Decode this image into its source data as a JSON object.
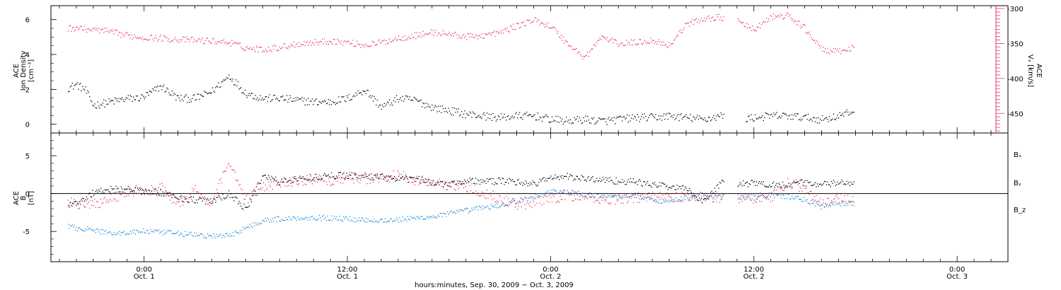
{
  "colors": {
    "black": "#000000",
    "red": "#e8365f",
    "blue": "#1f86d6"
  },
  "chart_data": [
    {
      "type": "scatter",
      "panel": "top",
      "ylabel_left": [
        "ACE",
        "Ion Density",
        "[cm⁻³]"
      ],
      "ylabel_right": [
        "ACE",
        "Vₓ [km/s]"
      ],
      "ylim_left": [
        -0.5,
        6.8
      ],
      "ylim_right": [
        -478,
        -296
      ],
      "yticks_left": [
        "0",
        "2",
        "4",
        "6"
      ],
      "yticks_right": [
        "-300",
        "-350",
        "-400",
        "-450"
      ],
      "series": [
        {
          "color": "#000000",
          "axis": "left",
          "x": [
            -4.5,
            -4,
            -3.5,
            -3,
            -2.5,
            -2,
            -1.5,
            -1,
            -0.5,
            0,
            1,
            2,
            3,
            4,
            5,
            6,
            7,
            8,
            9,
            10,
            11,
            12,
            13,
            14,
            15,
            16,
            17,
            18,
            19,
            20,
            21,
            22,
            23,
            24,
            25,
            26,
            27,
            28,
            29,
            30,
            31,
            32,
            33,
            34,
            35,
            36,
            37,
            38,
            39,
            40,
            41,
            42
          ],
          "y": [
            2.1,
            2.3,
            2.0,
            1.1,
            1.2,
            1.3,
            1.4,
            1.5,
            1.5,
            1.6,
            2.2,
            1.5,
            1.5,
            1.9,
            2.8,
            1.8,
            1.5,
            1.5,
            1.4,
            1.3,
            1.3,
            1.5,
            2.0,
            1.0,
            1.5,
            1.4,
            1.0,
            0.8,
            0.6,
            0.5,
            0.4,
            0.5,
            0.5,
            0.3,
            0.2,
            0.3,
            0.2,
            0.3,
            0.4,
            0.4,
            0.5,
            0.4,
            0.3,
            0.5,
            0.3,
            0.4,
            0.5,
            0.5,
            0.4,
            0.3,
            0.5,
            0.8
          ]
        },
        {
          "color": "#e8365f",
          "axis": "right",
          "x": [
            -4.5,
            -4,
            -3.5,
            -3,
            -2.5,
            -2,
            -1.5,
            -1,
            -0.5,
            0,
            1,
            2,
            3,
            4,
            5,
            6,
            7,
            8,
            9,
            10,
            11,
            12,
            13,
            14,
            15,
            16,
            17,
            18,
            19,
            20,
            21,
            22,
            23,
            24,
            25,
            26,
            27,
            28,
            29,
            30,
            31,
            32,
            33,
            34,
            35,
            36,
            37,
            38,
            39,
            40,
            41,
            42
          ],
          "y": [
            -328,
            -327,
            -329,
            -330,
            -331,
            -333,
            -336,
            -338,
            -340,
            -341,
            -342,
            -344,
            -345,
            -346,
            -348,
            -356,
            -358,
            -355,
            -350,
            -348,
            -346,
            -348,
            -352,
            -348,
            -342,
            -338,
            -334,
            -336,
            -340,
            -338,
            -334,
            -324,
            -316,
            -325,
            -350,
            -370,
            -340,
            -350,
            -348,
            -345,
            -352,
            -322,
            -314,
            -312,
            -318,
            -330,
            -312,
            -310,
            -328,
            -358,
            -362,
            -354
          ]
        }
      ]
    },
    {
      "type": "scatter",
      "panel": "bottom",
      "ylabel_left": [
        "ACE",
        "B",
        "[nT]"
      ],
      "ylim": [
        -9,
        8
      ],
      "yticks": [
        "-5",
        "0",
        "5"
      ],
      "legend": [
        "Bₓ",
        "Bᵧ",
        "B_z"
      ],
      "series": [
        {
          "name": "Bₓ",
          "color": "#000000",
          "x": [
            -4.5,
            -4,
            -3.5,
            -3,
            -2.5,
            -2,
            -1.5,
            -1,
            -0.5,
            0,
            1,
            2,
            3,
            4,
            5,
            6,
            7,
            8,
            9,
            10,
            11,
            12,
            13,
            14,
            15,
            16,
            17,
            18,
            19,
            20,
            21,
            22,
            23,
            24,
            25,
            26,
            27,
            28,
            29,
            30,
            31,
            32,
            33,
            34,
            35,
            36,
            37,
            38,
            39,
            40,
            41,
            42
          ],
          "y": [
            -1.5,
            -1.2,
            -0.6,
            0.2,
            0.5,
            0.6,
            0.7,
            0.6,
            0.4,
            0.3,
            0.2,
            -0.5,
            -0.8,
            -1.0,
            0.0,
            -2.0,
            2.5,
            1.6,
            2.0,
            2.2,
            2.4,
            2.5,
            2.3,
            2.3,
            1.9,
            2.0,
            1.5,
            1.4,
            1.8,
            1.6,
            1.7,
            1.6,
            1.3,
            2.2,
            2.3,
            2.0,
            1.9,
            1.7,
            1.6,
            1.2,
            1.0,
            0.6,
            -1.0,
            1.4,
            1.3,
            1.4,
            1.2,
            1.3,
            1.5,
            1.2,
            1.5,
            1.3
          ]
        },
        {
          "name": "Bᵧ",
          "color": "#1f86d6",
          "x": [
            -4.5,
            -4,
            -3.5,
            -3,
            -2.5,
            -2,
            -1.5,
            -1,
            -0.5,
            0,
            1,
            2,
            3,
            4,
            5,
            6,
            7,
            8,
            9,
            10,
            11,
            12,
            13,
            14,
            15,
            16,
            17,
            18,
            19,
            20,
            21,
            22,
            23,
            24,
            25,
            26,
            27,
            28,
            29,
            30,
            31,
            32,
            33,
            34,
            35,
            36,
            37,
            38,
            39,
            40,
            41,
            42
          ],
          "y": [
            -4.3,
            -4.5,
            -4.6,
            -4.8,
            -5.0,
            -5.1,
            -5.2,
            -5.1,
            -5.0,
            -4.9,
            -5.1,
            -5.2,
            -5.4,
            -5.6,
            -5.5,
            -4.5,
            -3.5,
            -3.3,
            -3.2,
            -3.1,
            -3.2,
            -3.3,
            -3.4,
            -3.5,
            -3.4,
            -3.2,
            -3.0,
            -2.6,
            -2.2,
            -1.8,
            -1.5,
            -1.0,
            -0.4,
            0.4,
            0.2,
            -0.1,
            -0.3,
            -0.4,
            -0.2,
            -0.8,
            -1.0,
            -0.4,
            -0.2,
            -0.3,
            -0.5,
            -0.4,
            -0.2,
            -0.3,
            -0.8,
            -1.5,
            -1.3,
            -1.2
          ]
        },
        {
          "name": "B_z",
          "color": "#e8365f",
          "x": [
            -4.5,
            -4,
            -3.5,
            -3,
            -2.5,
            -2,
            -1.5,
            -1,
            -0.5,
            0,
            1,
            2,
            3,
            4,
            5,
            6,
            7,
            8,
            9,
            10,
            11,
            12,
            13,
            14,
            15,
            16,
            17,
            18,
            19,
            20,
            21,
            22,
            23,
            24,
            25,
            26,
            27,
            28,
            29,
            30,
            31,
            32,
            33,
            34,
            35,
            36,
            37,
            38,
            39,
            40,
            41,
            42
          ],
          "y": [
            -1.0,
            -1.2,
            -1.5,
            -1.3,
            -1.0,
            -0.5,
            -0.2,
            0.2,
            0.5,
            0.3,
            0.8,
            -1.5,
            0.5,
            -1.5,
            4.5,
            -0.8,
            1.0,
            1.5,
            1.8,
            2.0,
            1.8,
            2.2,
            2.0,
            2.1,
            2.5,
            1.8,
            1.5,
            1.2,
            1.0,
            0.2,
            -0.6,
            -1.4,
            -1.2,
            -0.6,
            -0.2,
            -0.4,
            -0.8,
            -0.6,
            -0.5,
            -0.3,
            -0.5,
            -0.3,
            -0.4,
            -0.5,
            -0.6,
            -0.5,
            -0.4,
            1.5,
            0.8,
            -1.5,
            -0.5,
            -0.8
          ]
        }
      ]
    }
  ],
  "x_axis": {
    "xlim": [
      -5.5,
      51
    ],
    "tick_hours": [
      0,
      12,
      24,
      36,
      48
    ],
    "tick_labels": [
      "0:00\nOct. 1",
      "12:00\nOct. 1",
      "0:00\nOct. 2",
      "12:00\nOct. 2",
      "0:00\nOct. 3"
    ],
    "minor_step_hours": 1,
    "title": "hours:minutes, Sep. 30, 2009 − Oct.  3, 2009"
  }
}
